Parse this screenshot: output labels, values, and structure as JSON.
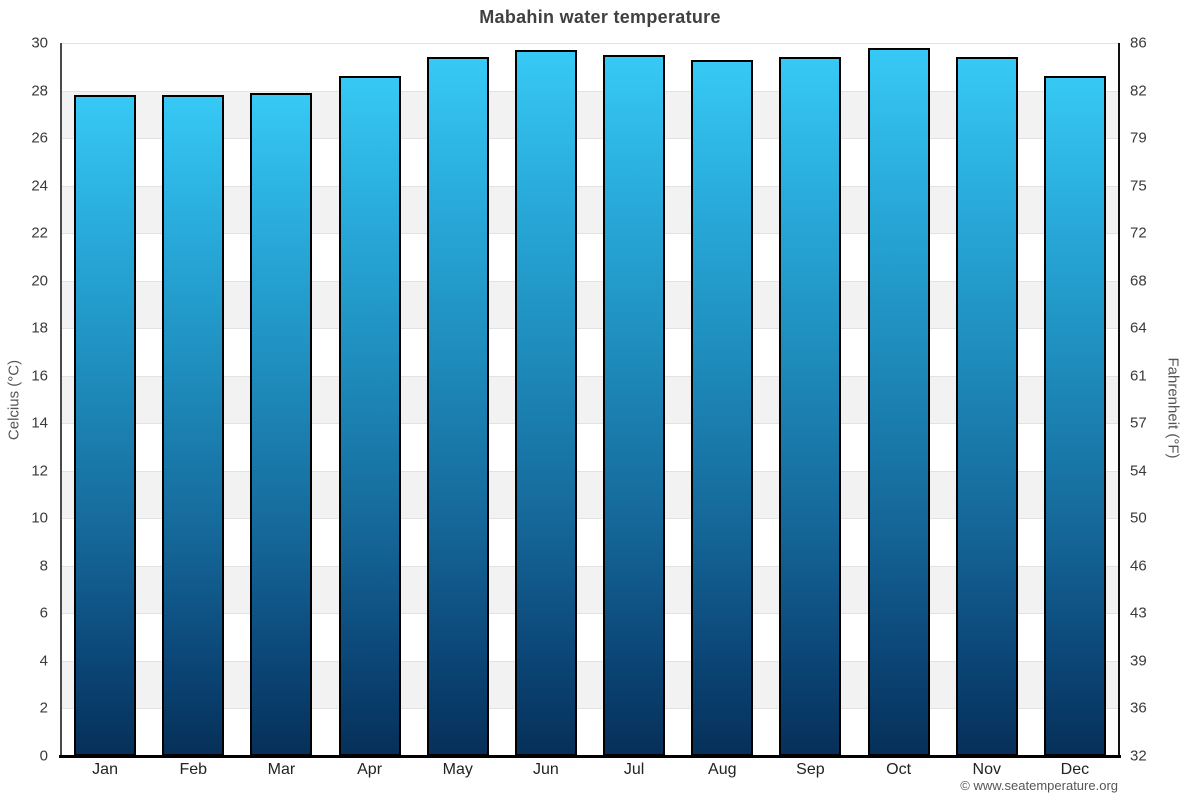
{
  "title": "Mabahin water temperature",
  "footer": "© www.seatemperature.org",
  "chart_data": {
    "type": "bar",
    "title": "Mabahin water temperature",
    "categories": [
      "Jan",
      "Feb",
      "Mar",
      "Apr",
      "May",
      "Jun",
      "Jul",
      "Aug",
      "Sep",
      "Oct",
      "Nov",
      "Dec"
    ],
    "values": [
      27.8,
      27.8,
      27.9,
      28.6,
      29.4,
      29.7,
      29.5,
      29.3,
      29.4,
      29.8,
      29.4,
      28.6
    ],
    "ylabel_left": "Celcius (°C)",
    "ylabel_right": "Fahrenheit (°F)",
    "ylim": [
      0,
      30
    ],
    "celsius_ticks": [
      0,
      2,
      4,
      6,
      8,
      10,
      12,
      14,
      16,
      18,
      20,
      22,
      24,
      26,
      28,
      30
    ],
    "fahrenheit_ticks": [
      32,
      36,
      39,
      43,
      46,
      50,
      54,
      57,
      61,
      64,
      68,
      72,
      75,
      79,
      82,
      86
    ],
    "xlabel": "",
    "legend": "none",
    "grid": "horizontal alternating bands every 2°C"
  },
  "colors": {
    "bar_gradient_top": "#37c9f5",
    "bar_gradient_bottom": "#063059",
    "bar_border": "#000000",
    "band_gray": "#f2f2f2",
    "band_white": "#ffffff",
    "gridline": "#e2e2e2",
    "axis_line": "#000000",
    "title_text": "#404040",
    "tick_text": "#3a3a3a",
    "footer_text": "#555555"
  }
}
